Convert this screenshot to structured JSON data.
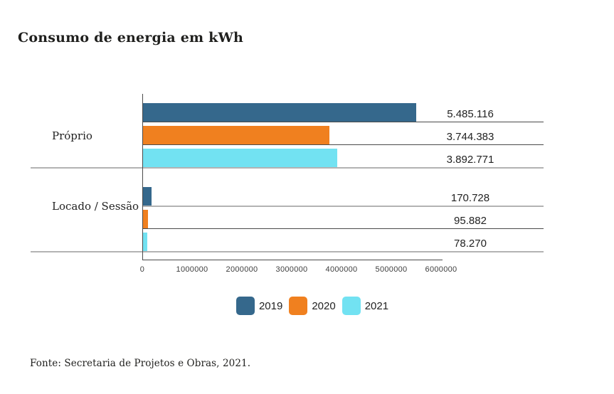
{
  "chart_data": {
    "type": "bar",
    "orientation": "horizontal",
    "title": "Consumo de energia em kWh",
    "categories": [
      "Próprio",
      "Locado / Sessão"
    ],
    "series": [
      {
        "name": "2019",
        "color": "#35688C",
        "values": [
          5485116,
          170728
        ]
      },
      {
        "name": "2020",
        "color": "#F0801F",
        "values": [
          3744383,
          95882
        ]
      },
      {
        "name": "2021",
        "color": "#72E2F2",
        "values": [
          3892771,
          78270
        ]
      }
    ],
    "rows": [
      {
        "category": "Próprio",
        "series": "2019",
        "value": 5485116,
        "label": "5.485.116"
      },
      {
        "category": "Próprio",
        "series": "2020",
        "value": 3744383,
        "label": "3.744.383"
      },
      {
        "category": "Próprio",
        "series": "2021",
        "value": 3892771,
        "label": "3.892.771"
      },
      {
        "category": "Locado / Sessão",
        "series": "2019",
        "value": 170728,
        "label": "170.728"
      },
      {
        "category": "Locado / Sessão",
        "series": "2020",
        "value": 95882,
        "label": "95.882"
      },
      {
        "category": "Locado / Sessão",
        "series": "2021",
        "value": 78270,
        "label": "78.270"
      }
    ],
    "x_ticks": [
      "0",
      "1000000",
      "2000000",
      "3000000",
      "4000000",
      "5000000",
      "6000000"
    ],
    "xlim": [
      0,
      6000000
    ],
    "legend_position": "bottom",
    "grid": "horizontal-row-rules"
  },
  "source": {
    "text": "Fonte: Secretaria de Projetos e Obras, 2021."
  }
}
